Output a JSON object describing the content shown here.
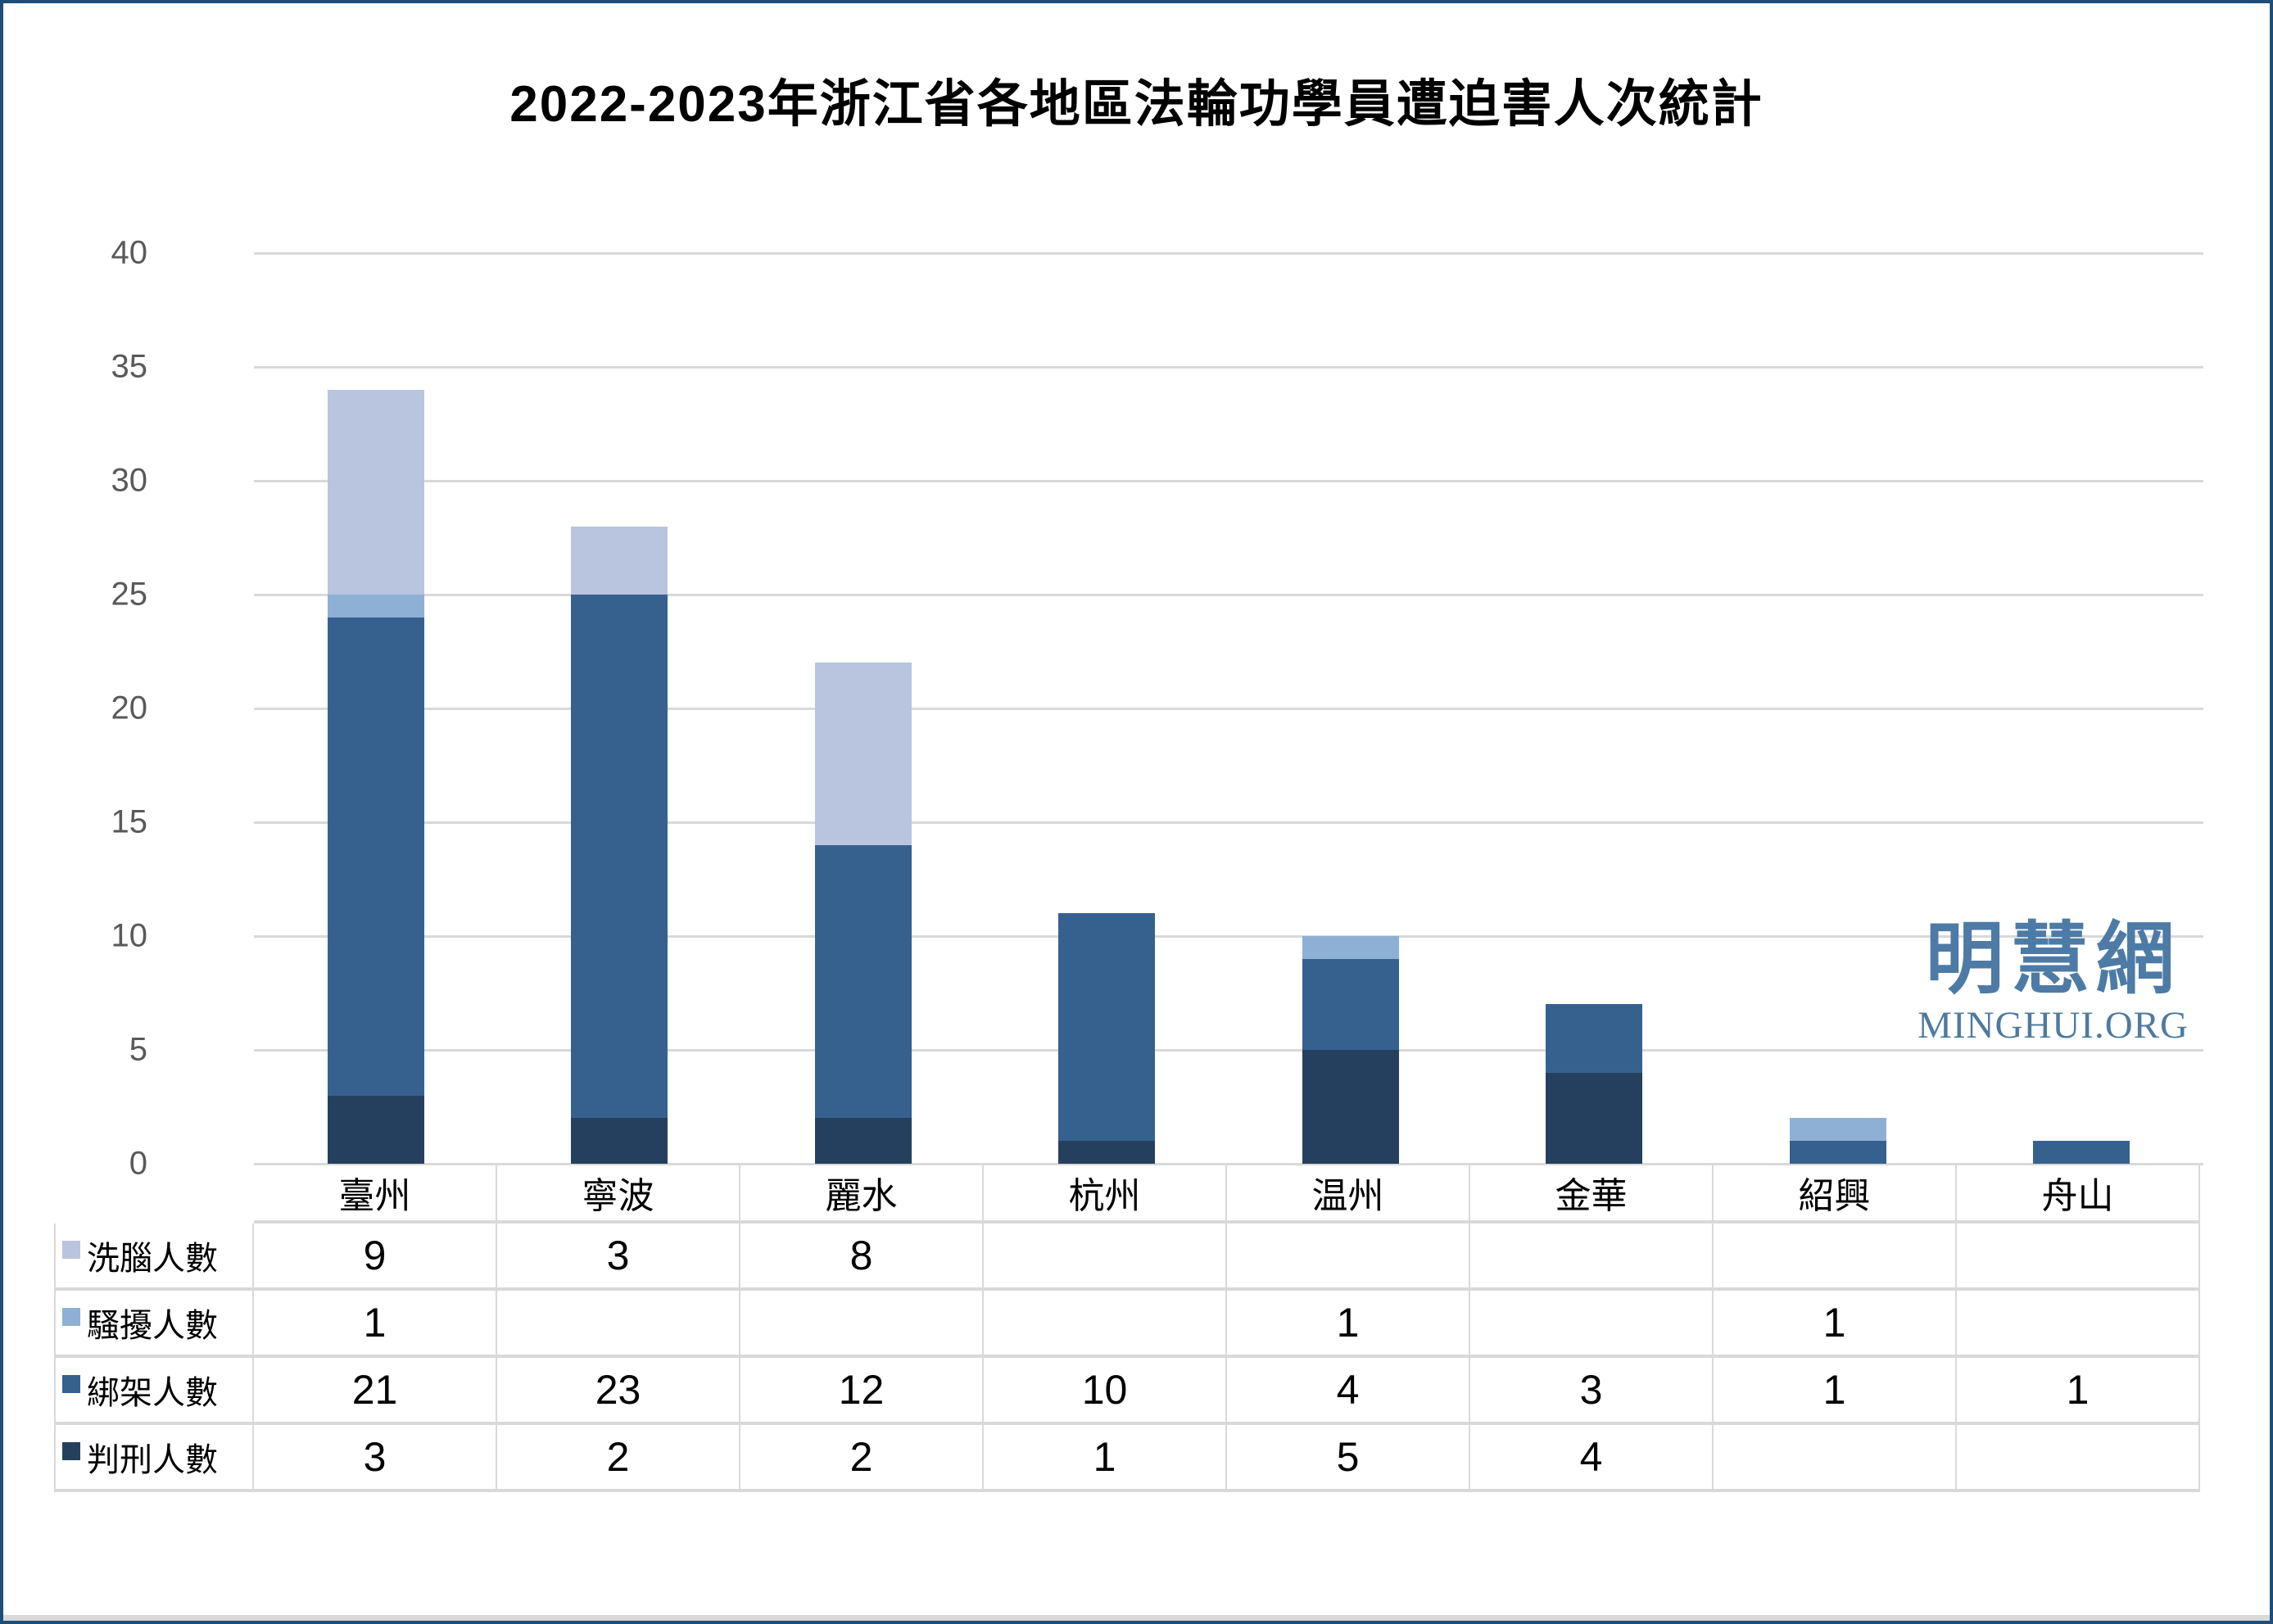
{
  "title": "2022-2023年浙江省各地區法輪功學員遭迫害人次統計",
  "watermark": {
    "cn": "明慧網",
    "en": "MINGHUI.ORG"
  },
  "chart_data": {
    "type": "bar",
    "stacked": true,
    "title": "2022-2023年浙江省各地區法輪功學員遭迫害人次統計",
    "categories": [
      "臺州",
      "寧波",
      "麗水",
      "杭州",
      "温州",
      "金華",
      "紹興",
      "舟山"
    ],
    "series": [
      {
        "name": "洗腦人數",
        "color": "#b9c5df",
        "values": [
          9,
          3,
          8,
          null,
          null,
          null,
          null,
          null
        ]
      },
      {
        "name": "騷擾人數",
        "color": "#8fb0d5",
        "values": [
          1,
          null,
          null,
          null,
          1,
          null,
          1,
          null
        ]
      },
      {
        "name": "綁架人數",
        "color": "#36618f",
        "values": [
          21,
          23,
          12,
          10,
          4,
          3,
          1,
          1
        ]
      },
      {
        "name": "判刑人數",
        "color": "#25405e",
        "values": [
          3,
          2,
          2,
          1,
          5,
          4,
          null,
          null
        ]
      }
    ],
    "stack_order_bottom_to_top": [
      "判刑人數",
      "綁架人數",
      "騷擾人數",
      "洗腦人數"
    ],
    "ylim": [
      0,
      40
    ],
    "yticks": [
      0,
      5,
      10,
      15,
      20,
      25,
      30,
      35,
      40
    ],
    "grid": true,
    "legend_position": "table-below-as-rows"
  },
  "colors": {
    "gridline": "#d9d9d9",
    "axis_text": "#595959",
    "frame_border": "#1d4e79",
    "watermark_cn": "#4d7ba6",
    "watermark_en": "#4f7a9f"
  }
}
